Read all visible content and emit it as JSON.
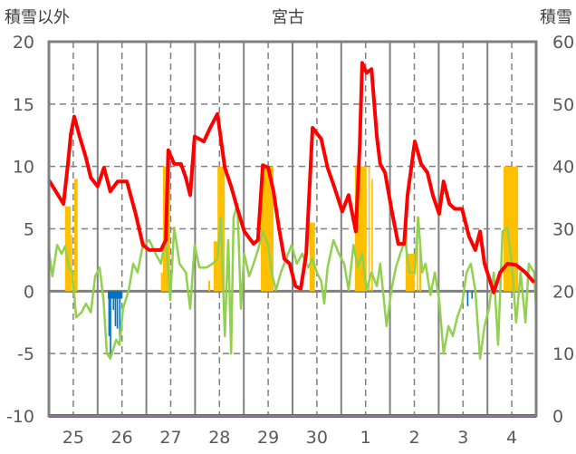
{
  "chart_data": {
    "type": "line",
    "title": "宮古",
    "ylabel_left": "積雪以外",
    "ylabel_right": "積雪",
    "ylim_left": [
      -10,
      20
    ],
    "ylim_right": [
      0,
      60
    ],
    "yticks_left": [
      "20",
      "15",
      "10",
      "5",
      "0",
      "-5",
      "-10"
    ],
    "yticks_right": [
      "60",
      "50",
      "40",
      "30",
      "20",
      "10",
      "0"
    ],
    "x_categories": [
      "25",
      "26",
      "27",
      "28",
      "29",
      "30",
      "1",
      "2",
      "3",
      "4"
    ],
    "grid": true,
    "colors": {
      "red": "#ff0000",
      "green": "#92d050",
      "orange": "#ffc000",
      "blue": "#0070c0",
      "purple": "#7030a0",
      "axis": "#808080"
    },
    "series": [
      {
        "name": "red-series",
        "axis": "left",
        "type": "line",
        "color": "#ff0000",
        "points": [
          [
            0,
            8.9
          ],
          [
            0.3,
            7.0
          ],
          [
            0.39,
            10.2
          ],
          [
            0.45,
            12.6
          ],
          [
            0.52,
            14.0
          ],
          [
            0.63,
            12.4
          ],
          [
            0.76,
            10.7
          ],
          [
            0.86,
            9.1
          ],
          [
            1.0,
            8.4
          ],
          [
            1.13,
            9.9
          ],
          [
            1.26,
            8.0
          ],
          [
            1.41,
            8.8
          ],
          [
            1.6,
            8.8
          ],
          [
            1.78,
            6.2
          ],
          [
            1.93,
            3.7
          ],
          [
            2.06,
            3.3
          ],
          [
            2.3,
            3.3
          ],
          [
            2.4,
            4.1
          ],
          [
            2.45,
            11.3
          ],
          [
            2.57,
            10.2
          ],
          [
            2.71,
            10.2
          ],
          [
            2.81,
            9.1
          ],
          [
            2.9,
            7.7
          ],
          [
            2.99,
            12.4
          ],
          [
            3.18,
            12.0
          ],
          [
            3.31,
            13.1
          ],
          [
            3.46,
            14.2
          ],
          [
            3.61,
            9.9
          ],
          [
            3.74,
            8.4
          ],
          [
            3.87,
            6.6
          ],
          [
            4.01,
            4.8
          ],
          [
            4.2,
            3.8
          ],
          [
            4.29,
            4.1
          ],
          [
            4.39,
            10.1
          ],
          [
            4.5,
            9.9
          ],
          [
            4.61,
            8.0
          ],
          [
            4.72,
            5.1
          ],
          [
            4.83,
            2.6
          ],
          [
            4.94,
            2.2
          ],
          [
            5.06,
            0.4
          ],
          [
            5.17,
            0.2
          ],
          [
            5.28,
            3.0
          ],
          [
            5.41,
            13.1
          ],
          [
            5.59,
            12.2
          ],
          [
            5.72,
            9.9
          ],
          [
            5.87,
            8.2
          ],
          [
            6.02,
            6.4
          ],
          [
            6.15,
            7.7
          ],
          [
            6.3,
            4.8
          ],
          [
            6.38,
            11.7
          ],
          [
            6.43,
            18.3
          ],
          [
            6.52,
            17.5
          ],
          [
            6.62,
            17.8
          ],
          [
            6.73,
            12.4
          ],
          [
            6.8,
            10.2
          ],
          [
            6.9,
            9.5
          ],
          [
            7.03,
            6.6
          ],
          [
            7.17,
            3.8
          ],
          [
            7.29,
            3.8
          ],
          [
            7.36,
            7.7
          ],
          [
            7.51,
            12.0
          ],
          [
            7.64,
            10.2
          ],
          [
            7.77,
            9.5
          ],
          [
            7.88,
            7.7
          ],
          [
            8.01,
            6.2
          ],
          [
            8.1,
            8.8
          ],
          [
            8.22,
            7.0
          ],
          [
            8.33,
            6.6
          ],
          [
            8.48,
            6.6
          ],
          [
            8.62,
            4.4
          ],
          [
            8.75,
            3.3
          ],
          [
            8.85,
            4.8
          ],
          [
            8.94,
            2.2
          ],
          [
            9.13,
            -0.1
          ],
          [
            9.26,
            1.5
          ],
          [
            9.41,
            2.2
          ],
          [
            9.59,
            2.1
          ],
          [
            9.78,
            1.5
          ],
          [
            9.96,
            0.7
          ]
        ]
      },
      {
        "name": "green-series",
        "axis": "left",
        "type": "line",
        "color": "#92d050",
        "points": [
          [
            0,
            3.3
          ],
          [
            0.07,
            1.2
          ],
          [
            0.17,
            3.7
          ],
          [
            0.26,
            3.0
          ],
          [
            0.33,
            3.6
          ],
          [
            0.41,
            1.9
          ],
          [
            0.48,
            1.5
          ],
          [
            0.56,
            -2.1
          ],
          [
            0.67,
            -1.7
          ],
          [
            0.76,
            -1.0
          ],
          [
            0.86,
            -1.7
          ],
          [
            0.95,
            1.2
          ],
          [
            1.04,
            1.9
          ],
          [
            1.12,
            -0.7
          ],
          [
            1.19,
            -5.0
          ],
          [
            1.26,
            -5.4
          ],
          [
            1.38,
            -3.9
          ],
          [
            1.45,
            -4.3
          ],
          [
            1.52,
            -1.4
          ],
          [
            1.64,
            0.1
          ],
          [
            1.73,
            2.2
          ],
          [
            1.82,
            1.5
          ],
          [
            1.93,
            3.7
          ],
          [
            2.06,
            4.1
          ],
          [
            2.19,
            3.0
          ],
          [
            2.3,
            2.2
          ],
          [
            2.4,
            4.4
          ],
          [
            2.49,
            -0.7
          ],
          [
            2.57,
            5.1
          ],
          [
            2.68,
            2.2
          ],
          [
            2.81,
            1.5
          ],
          [
            2.9,
            -1.4
          ],
          [
            2.99,
            3.7
          ],
          [
            3.09,
            1.9
          ],
          [
            3.23,
            1.9
          ],
          [
            3.36,
            2.2
          ],
          [
            3.46,
            2.6
          ],
          [
            3.53,
            5.9
          ],
          [
            3.61,
            -3.6
          ],
          [
            3.68,
            4.1
          ],
          [
            3.74,
            -5.0
          ],
          [
            3.79,
            5.9
          ],
          [
            3.87,
            7.0
          ],
          [
            3.94,
            -1.4
          ],
          [
            4.01,
            3.0
          ],
          [
            4.11,
            1.2
          ],
          [
            4.2,
            2.2
          ],
          [
            4.29,
            3.3
          ],
          [
            4.39,
            4.8
          ],
          [
            4.5,
            3.7
          ],
          [
            4.57,
            1.5
          ],
          [
            4.66,
            0.1
          ],
          [
            4.76,
            1.5
          ],
          [
            4.87,
            2.6
          ],
          [
            4.98,
            3.7
          ],
          [
            5.09,
            2.2
          ],
          [
            5.2,
            3.0
          ],
          [
            5.32,
            1.9
          ],
          [
            5.41,
            2.6
          ],
          [
            5.5,
            1.5
          ],
          [
            5.59,
            0.8
          ],
          [
            5.65,
            -1.0
          ],
          [
            5.72,
            1.9
          ],
          [
            5.84,
            4.1
          ],
          [
            5.95,
            3.0
          ],
          [
            6.06,
            2.2
          ],
          [
            6.15,
            0.1
          ],
          [
            6.25,
            3.7
          ],
          [
            6.34,
            1.9
          ],
          [
            6.43,
            3.0
          ],
          [
            6.52,
            0.1
          ],
          [
            6.62,
            1.5
          ],
          [
            6.73,
            0.4
          ],
          [
            6.8,
            2.2
          ],
          [
            6.93,
            -2.8
          ],
          [
            7.03,
            0.1
          ],
          [
            7.12,
            1.9
          ],
          [
            7.21,
            3.0
          ],
          [
            7.31,
            4.1
          ],
          [
            7.4,
            1.5
          ],
          [
            7.51,
            1.5
          ],
          [
            7.58,
            5.9
          ],
          [
            7.66,
            1.5
          ],
          [
            7.73,
            2.2
          ],
          [
            7.83,
            -0.3
          ],
          [
            7.92,
            1.5
          ],
          [
            8.01,
            -0.7
          ],
          [
            8.1,
            -5.0
          ],
          [
            8.2,
            -2.8
          ],
          [
            8.29,
            -3.6
          ],
          [
            8.38,
            -2.1
          ],
          [
            8.48,
            -1.0
          ],
          [
            8.57,
            1.5
          ],
          [
            8.66,
            2.2
          ],
          [
            8.75,
            0.1
          ],
          [
            8.85,
            -5.4
          ],
          [
            8.94,
            -2.8
          ],
          [
            9.03,
            -1.4
          ],
          [
            9.13,
            1.5
          ],
          [
            9.22,
            -4.3
          ],
          [
            9.31,
            4.8
          ],
          [
            9.41,
            5.1
          ],
          [
            9.5,
            2.2
          ],
          [
            9.59,
            -2.5
          ],
          [
            9.68,
            1.5
          ],
          [
            9.78,
            -2.5
          ],
          [
            9.85,
            2.2
          ],
          [
            9.96,
            1.5
          ],
          [
            10.0,
            -1.4
          ]
        ]
      },
      {
        "name": "snow-bars",
        "axis": "right",
        "type": "bar",
        "color": "#ffc000",
        "base": 20,
        "bars": [
          [
            0.33,
            0.45,
            33.6
          ],
          [
            0.45,
            0.48,
            29
          ],
          [
            0.52,
            0.59,
            38
          ],
          [
            2.3,
            2.34,
            23
          ],
          [
            2.34,
            2.49,
            40
          ],
          [
            3.27,
            3.31,
            21.7
          ],
          [
            3.38,
            3.46,
            28
          ],
          [
            3.46,
            3.61,
            40
          ],
          [
            4.35,
            4.61,
            40
          ],
          [
            5.35,
            5.46,
            31
          ],
          [
            6.28,
            6.52,
            40
          ],
          [
            6.56,
            6.58,
            40
          ],
          [
            6.62,
            6.65,
            38
          ],
          [
            7.32,
            7.36,
            32
          ],
          [
            7.36,
            7.51,
            26
          ],
          [
            7.55,
            7.58,
            32
          ],
          [
            7.6,
            7.64,
            28
          ],
          [
            9.33,
            9.63,
            40
          ]
        ]
      },
      {
        "name": "blue-bars",
        "axis": "left",
        "type": "bar",
        "color": "#0070c0",
        "base": 0,
        "bars": [
          [
            1.21,
            1.5,
            -0.6
          ],
          [
            1.22,
            1.25,
            -3.6
          ],
          [
            1.25,
            1.28,
            -5.4
          ],
          [
            1.31,
            1.34,
            -1.5
          ],
          [
            1.35,
            1.38,
            -2.8
          ],
          [
            1.39,
            1.42,
            -3.0
          ],
          [
            1.44,
            1.47,
            -4.0
          ],
          [
            8.58,
            8.61,
            -1.2
          ],
          [
            8.67,
            8.7,
            -0.6
          ]
        ]
      },
      {
        "name": "purple-series",
        "axis": "right",
        "type": "line",
        "color": "#7030a0",
        "points": [
          [
            0,
            0
          ],
          [
            10,
            0
          ]
        ]
      }
    ]
  }
}
